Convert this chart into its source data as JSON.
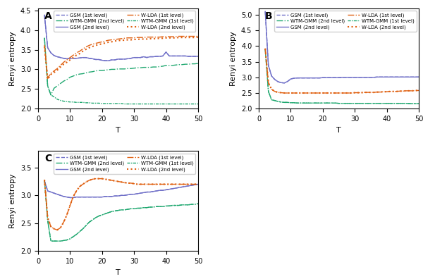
{
  "panels": [
    "A",
    "B",
    "C"
  ],
  "T_values": [
    2,
    3,
    4,
    5,
    6,
    7,
    8,
    9,
    10,
    11,
    12,
    13,
    14,
    15,
    16,
    17,
    18,
    19,
    20,
    21,
    22,
    23,
    24,
    25,
    26,
    27,
    28,
    29,
    30,
    31,
    32,
    33,
    34,
    35,
    36,
    37,
    38,
    39,
    40,
    41,
    42,
    43,
    44,
    45,
    46,
    47,
    48,
    49,
    50
  ],
  "colors": {
    "GSM": "#7070c8",
    "WTM_GMM": "#20a870",
    "W_LDA": "#e06010"
  },
  "line_styles": {
    "GSM_1st": {
      "ls": "--",
      "lw": 1.2
    },
    "GSM_2nd": {
      "ls": "-",
      "lw": 1.2
    },
    "WTM_GMM_1st": {
      "ls": "-.",
      "lw": 1.2
    },
    "WTM_GMM_2nd": {
      "ls": "-.",
      "lw": 1.2
    },
    "W_LDA_1st": {
      "ls": "-.",
      "lw": 1.2
    },
    "W_LDA_2nd": {
      "ls": ":",
      "lw": 1.5
    }
  },
  "panel_A": {
    "ylim": [
      2.0,
      4.55
    ],
    "yticks": [
      2.0,
      2.5,
      3.0,
      3.5,
      4.0,
      4.5
    ],
    "GSM_1st": [
      4.38,
      3.55,
      3.42,
      3.35,
      3.32,
      3.3,
      3.28,
      3.27,
      3.28,
      3.28,
      3.28,
      3.29,
      3.3,
      3.3,
      3.28,
      3.27,
      3.25,
      3.25,
      3.23,
      3.22,
      3.22,
      3.24,
      3.24,
      3.26,
      3.26,
      3.26,
      3.27,
      3.28,
      3.3,
      3.3,
      3.3,
      3.32,
      3.3,
      3.32,
      3.32,
      3.33,
      3.33,
      3.34,
      3.44,
      3.34,
      3.34,
      3.34,
      3.34,
      3.34,
      3.34,
      3.33,
      3.33,
      3.33,
      3.33
    ],
    "GSM_2nd": [
      4.38,
      3.55,
      3.42,
      3.35,
      3.32,
      3.3,
      3.28,
      3.27,
      3.28,
      3.28,
      3.28,
      3.29,
      3.3,
      3.3,
      3.28,
      3.27,
      3.25,
      3.25,
      3.23,
      3.22,
      3.22,
      3.24,
      3.24,
      3.26,
      3.26,
      3.26,
      3.27,
      3.28,
      3.3,
      3.3,
      3.3,
      3.32,
      3.3,
      3.32,
      3.32,
      3.33,
      3.33,
      3.34,
      3.44,
      3.34,
      3.34,
      3.34,
      3.34,
      3.34,
      3.34,
      3.33,
      3.33,
      3.33,
      3.33
    ],
    "WTM_GMM_1st": [
      3.8,
      2.58,
      2.35,
      2.3,
      2.24,
      2.21,
      2.19,
      2.18,
      2.17,
      2.17,
      2.16,
      2.16,
      2.16,
      2.15,
      2.15,
      2.14,
      2.14,
      2.14,
      2.13,
      2.13,
      2.13,
      2.13,
      2.13,
      2.13,
      2.13,
      2.12,
      2.12,
      2.12,
      2.12,
      2.12,
      2.12,
      2.12,
      2.12,
      2.12,
      2.12,
      2.12,
      2.12,
      2.12,
      2.12,
      2.12,
      2.12,
      2.12,
      2.12,
      2.12,
      2.12,
      2.12,
      2.12,
      2.12,
      2.12
    ],
    "WTM_GMM_2nd": [
      3.8,
      2.58,
      2.35,
      2.52,
      2.58,
      2.64,
      2.7,
      2.74,
      2.8,
      2.83,
      2.86,
      2.88,
      2.89,
      2.91,
      2.93,
      2.94,
      2.96,
      2.97,
      2.97,
      2.98,
      2.99,
      3.0,
      3.0,
      3.01,
      3.01,
      3.01,
      3.02,
      3.02,
      3.03,
      3.04,
      3.04,
      3.05,
      3.05,
      3.05,
      3.06,
      3.06,
      3.07,
      3.08,
      3.1,
      3.1,
      3.1,
      3.11,
      3.12,
      3.12,
      3.13,
      3.13,
      3.14,
      3.14,
      3.15
    ],
    "W_LDA_1st": [
      3.62,
      2.78,
      2.9,
      2.96,
      3.02,
      3.1,
      3.18,
      3.24,
      3.3,
      3.36,
      3.42,
      3.46,
      3.52,
      3.57,
      3.61,
      3.64,
      3.66,
      3.68,
      3.7,
      3.72,
      3.74,
      3.75,
      3.76,
      3.77,
      3.78,
      3.79,
      3.8,
      3.8,
      3.8,
      3.81,
      3.81,
      3.81,
      3.82,
      3.82,
      3.82,
      3.82,
      3.82,
      3.83,
      3.83,
      3.83,
      3.83,
      3.83,
      3.84,
      3.84,
      3.84,
      3.84,
      3.84,
      3.84,
      3.84
    ],
    "W_LDA_2nd": [
      3.58,
      2.74,
      2.87,
      2.92,
      2.98,
      3.06,
      3.13,
      3.18,
      3.24,
      3.3,
      3.36,
      3.4,
      3.46,
      3.51,
      3.55,
      3.58,
      3.61,
      3.63,
      3.65,
      3.67,
      3.69,
      3.7,
      3.72,
      3.73,
      3.74,
      3.74,
      3.75,
      3.75,
      3.76,
      3.76,
      3.77,
      3.77,
      3.77,
      3.78,
      3.78,
      3.78,
      3.79,
      3.79,
      3.8,
      3.8,
      3.8,
      3.8,
      3.81,
      3.81,
      3.81,
      3.81,
      3.81,
      3.81,
      3.82
    ]
  },
  "panel_B": {
    "ylim": [
      2.0,
      5.2
    ],
    "yticks": [
      2.0,
      2.5,
      3.0,
      3.5,
      4.0,
      4.5,
      5.0
    ],
    "GSM_1st": [
      5.1,
      3.38,
      3.04,
      2.93,
      2.86,
      2.83,
      2.82,
      2.87,
      2.95,
      2.97,
      2.98,
      2.98,
      2.98,
      2.98,
      2.98,
      2.98,
      2.98,
      2.98,
      2.99,
      2.99,
      2.99,
      2.99,
      2.99,
      2.99,
      3.0,
      3.0,
      3.0,
      3.0,
      3.0,
      3.0,
      3.0,
      3.0,
      3.0,
      3.0,
      3.0,
      3.01,
      3.01,
      3.01,
      3.01,
      3.01,
      3.01,
      3.01,
      3.01,
      3.01,
      3.01,
      3.01,
      3.01,
      3.01,
      3.01
    ],
    "GSM_2nd": [
      5.1,
      3.38,
      3.04,
      2.93,
      2.86,
      2.83,
      2.82,
      2.87,
      2.95,
      2.97,
      2.98,
      2.98,
      2.98,
      2.98,
      2.98,
      2.98,
      2.98,
      2.98,
      2.99,
      2.99,
      2.99,
      2.99,
      2.99,
      2.99,
      3.0,
      3.0,
      3.0,
      3.0,
      3.0,
      3.0,
      3.0,
      3.0,
      3.0,
      3.0,
      3.0,
      3.01,
      3.01,
      3.01,
      3.01,
      3.01,
      3.01,
      3.01,
      3.01,
      3.01,
      3.01,
      3.01,
      3.01,
      3.01,
      3.01
    ],
    "WTM_GMM_1st": [
      3.9,
      2.55,
      2.28,
      2.26,
      2.23,
      2.21,
      2.2,
      2.2,
      2.19,
      2.19,
      2.18,
      2.18,
      2.18,
      2.18,
      2.18,
      2.18,
      2.18,
      2.18,
      2.18,
      2.18,
      2.18,
      2.18,
      2.18,
      2.17,
      2.17,
      2.17,
      2.17,
      2.17,
      2.17,
      2.17,
      2.17,
      2.17,
      2.17,
      2.17,
      2.17,
      2.17,
      2.17,
      2.17,
      2.17,
      2.17,
      2.17,
      2.17,
      2.17,
      2.17,
      2.17,
      2.16,
      2.16,
      2.16,
      2.16
    ],
    "WTM_GMM_2nd": [
      3.9,
      2.55,
      2.28,
      2.26,
      2.23,
      2.21,
      2.2,
      2.2,
      2.19,
      2.19,
      2.18,
      2.18,
      2.18,
      2.18,
      2.18,
      2.18,
      2.18,
      2.18,
      2.18,
      2.18,
      2.18,
      2.18,
      2.18,
      2.17,
      2.17,
      2.17,
      2.17,
      2.17,
      2.17,
      2.17,
      2.17,
      2.17,
      2.17,
      2.17,
      2.17,
      2.17,
      2.17,
      2.17,
      2.17,
      2.17,
      2.17,
      2.17,
      2.17,
      2.17,
      2.17,
      2.16,
      2.16,
      2.16,
      2.16
    ],
    "W_LDA_1st": [
      3.92,
      2.82,
      2.62,
      2.55,
      2.52,
      2.51,
      2.5,
      2.5,
      2.5,
      2.5,
      2.5,
      2.5,
      2.5,
      2.5,
      2.5,
      2.5,
      2.5,
      2.5,
      2.5,
      2.5,
      2.5,
      2.5,
      2.5,
      2.5,
      2.5,
      2.5,
      2.5,
      2.5,
      2.51,
      2.51,
      2.51,
      2.52,
      2.52,
      2.52,
      2.52,
      2.53,
      2.53,
      2.54,
      2.54,
      2.55,
      2.55,
      2.55,
      2.56,
      2.56,
      2.57,
      2.57,
      2.57,
      2.58,
      2.58
    ],
    "W_LDA_2nd": [
      3.92,
      2.82,
      2.62,
      2.55,
      2.52,
      2.51,
      2.5,
      2.5,
      2.5,
      2.5,
      2.5,
      2.5,
      2.5,
      2.5,
      2.5,
      2.5,
      2.5,
      2.5,
      2.5,
      2.5,
      2.5,
      2.5,
      2.5,
      2.5,
      2.5,
      2.5,
      2.5,
      2.5,
      2.51,
      2.51,
      2.51,
      2.52,
      2.52,
      2.52,
      2.52,
      2.53,
      2.53,
      2.54,
      2.54,
      2.55,
      2.55,
      2.55,
      2.56,
      2.56,
      2.57,
      2.57,
      2.57,
      2.58,
      2.58
    ]
  },
  "panel_C": {
    "ylim": [
      2.0,
      3.8
    ],
    "yticks": [
      2.0,
      2.5,
      3.0,
      3.5
    ],
    "GSM_1st": [
      3.26,
      3.08,
      3.06,
      3.04,
      3.02,
      3.0,
      2.98,
      2.97,
      2.96,
      2.96,
      2.97,
      2.97,
      2.97,
      2.97,
      2.97,
      2.97,
      2.97,
      2.97,
      2.97,
      2.98,
      2.98,
      2.98,
      2.99,
      2.99,
      3.0,
      3.0,
      3.01,
      3.02,
      3.02,
      3.03,
      3.04,
      3.05,
      3.06,
      3.06,
      3.07,
      3.08,
      3.09,
      3.09,
      3.1,
      3.11,
      3.12,
      3.13,
      3.14,
      3.15,
      3.16,
      3.17,
      3.18,
      3.19,
      3.2
    ],
    "GSM_2nd": [
      3.26,
      3.08,
      3.06,
      3.04,
      3.02,
      3.0,
      2.98,
      2.97,
      2.96,
      2.96,
      2.97,
      2.97,
      2.97,
      2.97,
      2.97,
      2.97,
      2.97,
      2.97,
      2.97,
      2.98,
      2.98,
      2.98,
      2.99,
      2.99,
      3.0,
      3.0,
      3.01,
      3.02,
      3.02,
      3.03,
      3.04,
      3.05,
      3.06,
      3.06,
      3.07,
      3.08,
      3.09,
      3.09,
      3.1,
      3.11,
      3.12,
      3.13,
      3.14,
      3.15,
      3.16,
      3.17,
      3.18,
      3.19,
      3.2
    ],
    "WTM_GMM_1st": [
      3.28,
      2.55,
      2.18,
      2.18,
      2.18,
      2.18,
      2.19,
      2.2,
      2.22,
      2.26,
      2.3,
      2.35,
      2.4,
      2.46,
      2.52,
      2.56,
      2.6,
      2.63,
      2.65,
      2.67,
      2.69,
      2.71,
      2.72,
      2.73,
      2.74,
      2.74,
      2.75,
      2.76,
      2.76,
      2.77,
      2.77,
      2.78,
      2.78,
      2.79,
      2.79,
      2.8,
      2.8,
      2.8,
      2.81,
      2.81,
      2.82,
      2.82,
      2.82,
      2.83,
      2.83,
      2.83,
      2.84,
      2.84,
      2.85
    ],
    "WTM_GMM_2nd": [
      3.28,
      2.55,
      2.18,
      2.18,
      2.18,
      2.18,
      2.19,
      2.2,
      2.22,
      2.26,
      2.3,
      2.35,
      2.4,
      2.46,
      2.52,
      2.56,
      2.6,
      2.63,
      2.65,
      2.67,
      2.69,
      2.71,
      2.72,
      2.73,
      2.74,
      2.74,
      2.75,
      2.76,
      2.76,
      2.77,
      2.77,
      2.78,
      2.78,
      2.79,
      2.79,
      2.8,
      2.8,
      2.8,
      2.81,
      2.81,
      2.82,
      2.82,
      2.82,
      2.83,
      2.83,
      2.83,
      2.84,
      2.84,
      2.85
    ],
    "W_LDA_1st": [
      3.28,
      2.6,
      2.44,
      2.4,
      2.38,
      2.42,
      2.52,
      2.65,
      2.82,
      2.98,
      3.08,
      3.16,
      3.2,
      3.24,
      3.27,
      3.29,
      3.3,
      3.3,
      3.3,
      3.29,
      3.28,
      3.27,
      3.26,
      3.25,
      3.24,
      3.23,
      3.22,
      3.22,
      3.21,
      3.2,
      3.2,
      3.2,
      3.2,
      3.2,
      3.2,
      3.2,
      3.2,
      3.2,
      3.2,
      3.2,
      3.2,
      3.2,
      3.2,
      3.2,
      3.2,
      3.2,
      3.2,
      3.2,
      3.2
    ],
    "W_LDA_2nd": [
      3.28,
      2.6,
      2.44,
      2.4,
      2.38,
      2.42,
      2.52,
      2.65,
      2.82,
      2.98,
      3.08,
      3.16,
      3.2,
      3.24,
      3.27,
      3.29,
      3.3,
      3.3,
      3.3,
      3.29,
      3.28,
      3.27,
      3.26,
      3.25,
      3.24,
      3.23,
      3.22,
      3.22,
      3.21,
      3.2,
      3.2,
      3.2,
      3.2,
      3.2,
      3.2,
      3.2,
      3.2,
      3.2,
      3.2,
      3.2,
      3.2,
      3.2,
      3.2,
      3.2,
      3.2,
      3.2,
      3.2,
      3.2,
      3.2
    ]
  },
  "legend_labels": {
    "GSM_1st": "GSM (1st level)",
    "GSM_2nd": "GSM (2nd level)",
    "WTM_GMM_1st": "WTM-GMM (1st level)",
    "WTM_GMM_2nd": "WTM-GMM (2nd level)",
    "W_LDA_1st": "W-LDA (1st level)",
    "W_LDA_2nd": "W-LDA (2nd level)"
  }
}
